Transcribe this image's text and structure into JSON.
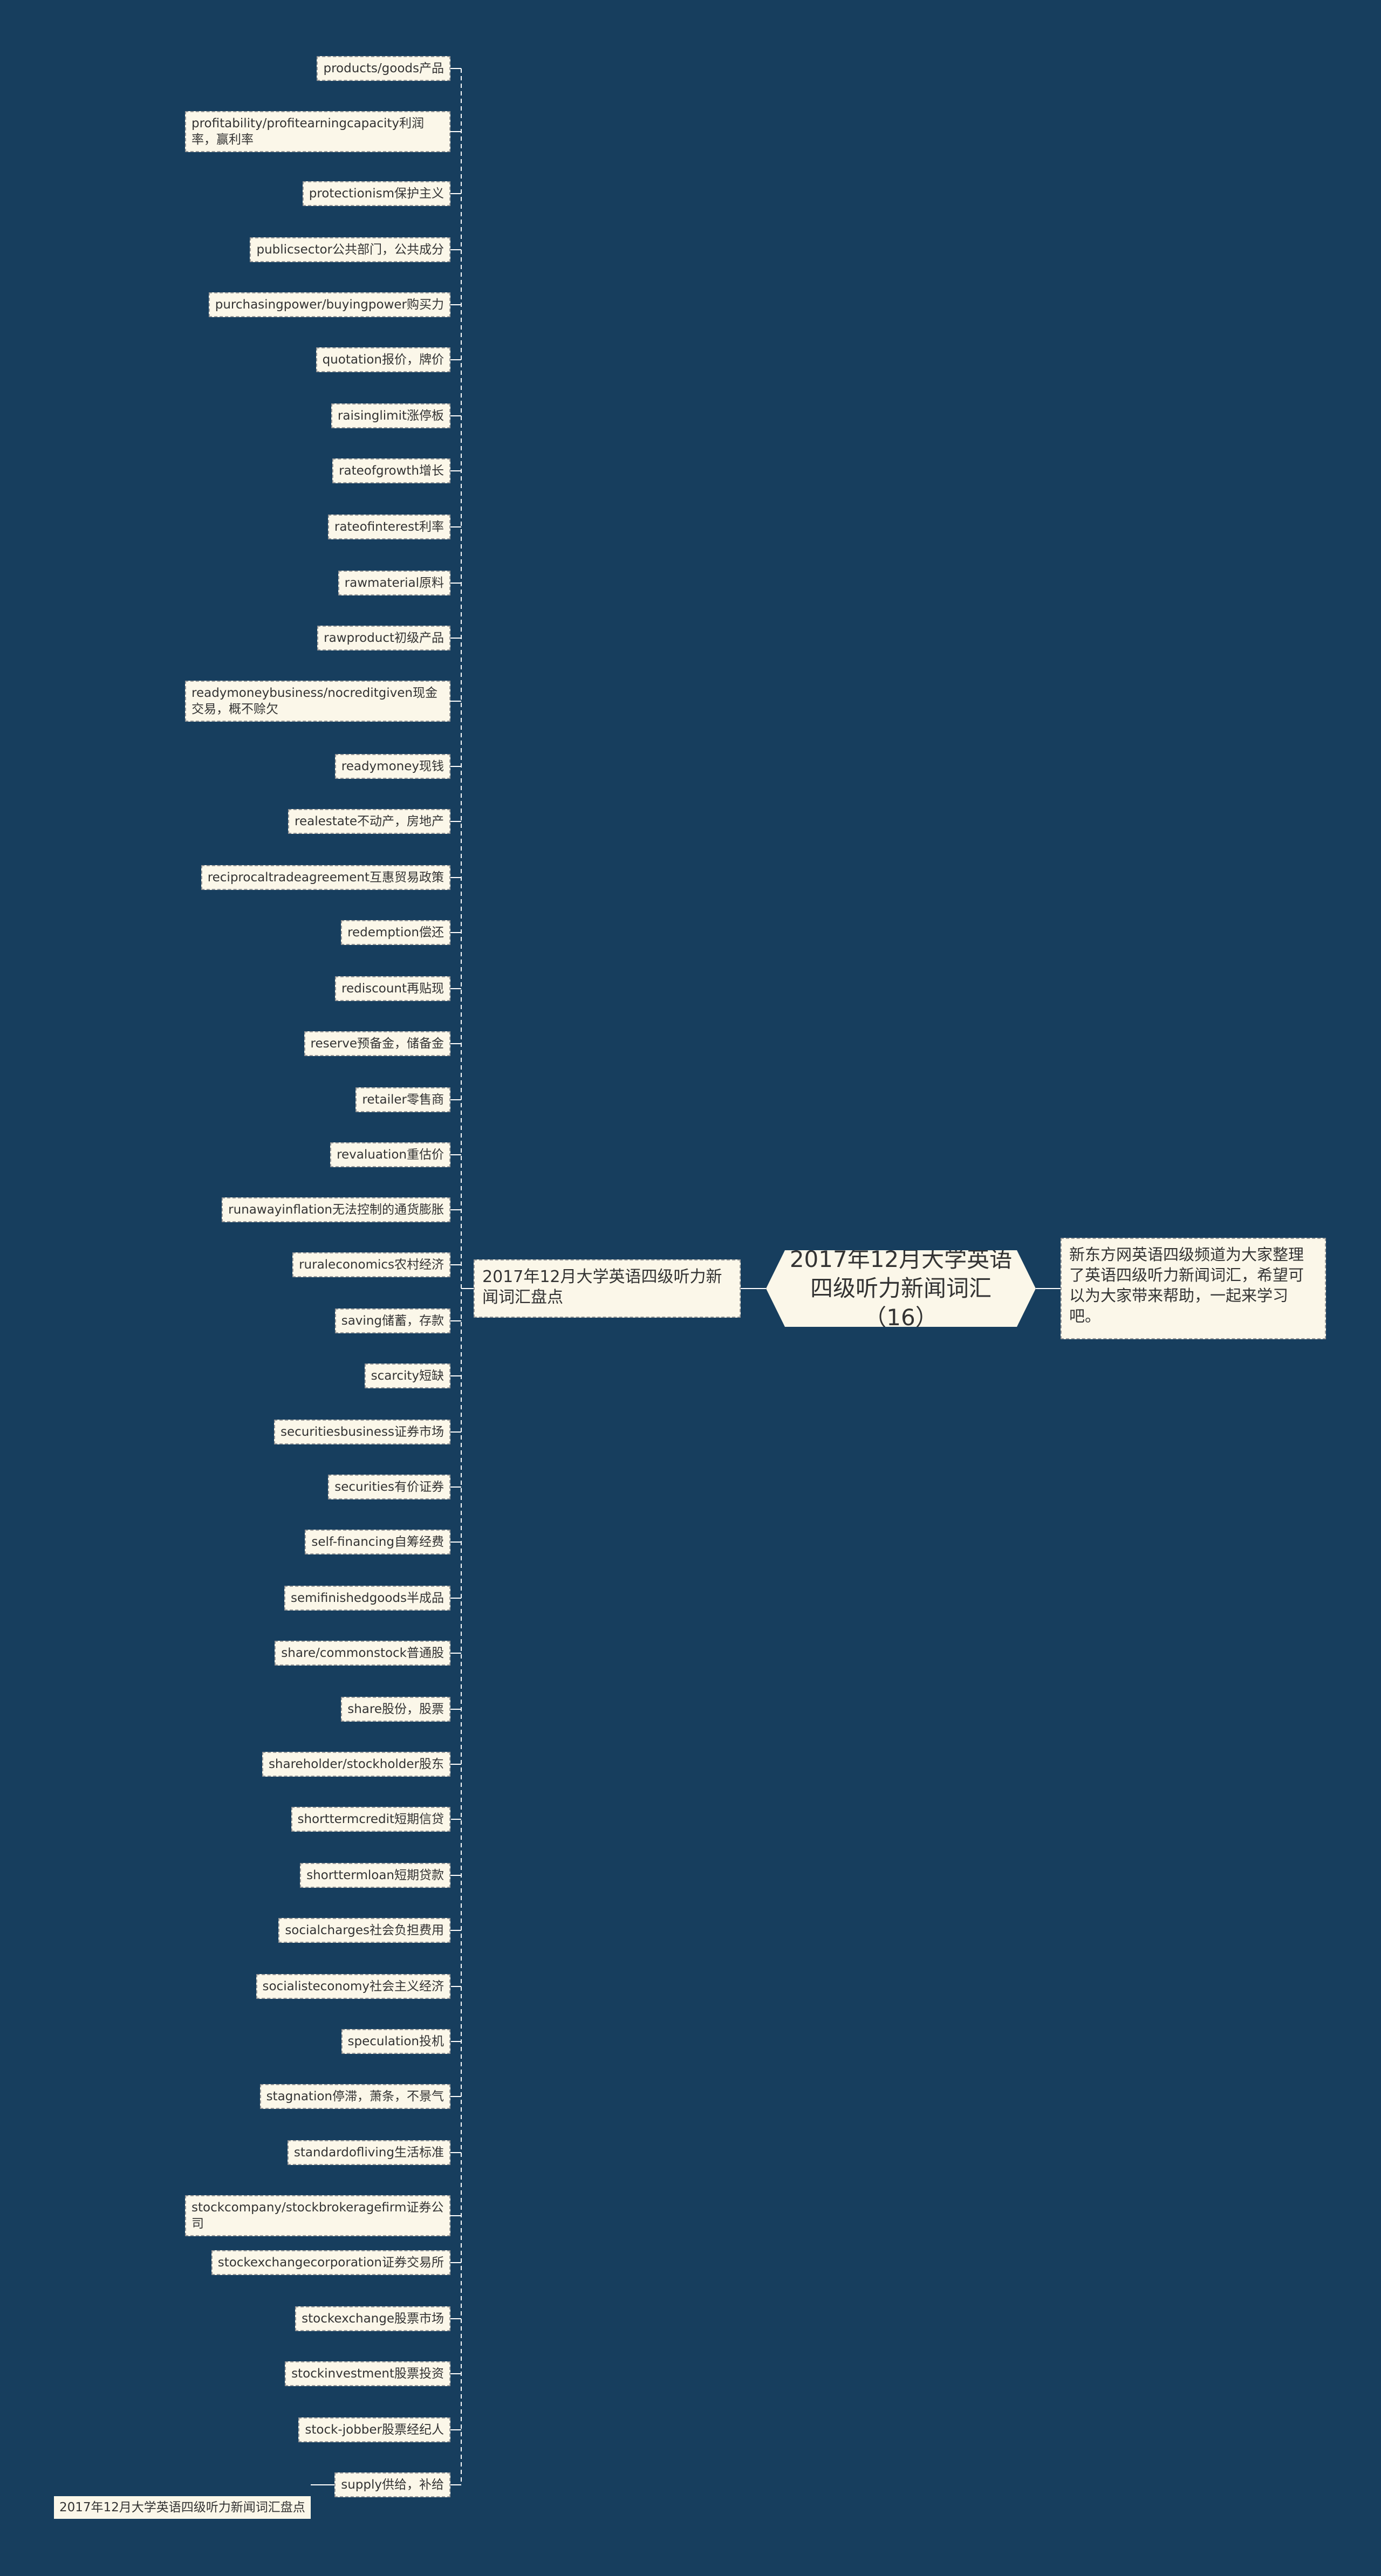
{
  "root": {
    "title": "2017年12月大学英语四级听力新闻词汇（16）"
  },
  "branch": {
    "label": "2017年12月大学英语四级听力新闻词汇盘点"
  },
  "note": {
    "text": "新东方网英语四级频道为大家整理了英语四级听力新闻词汇，希望可以为大家带来帮助，一起来学习吧。"
  },
  "summary": {
    "label": "2017年12月大学英语四级听力新闻词汇盘点"
  },
  "colors": {
    "background": "#173e5e",
    "node_fill": "#fbf7e9",
    "connector": "#ffffff"
  },
  "leaves": [
    "products/goods产品",
    "profitability/profitearningcapacity利润率，赢利率",
    "protectionism保护主义",
    "publicsector公共部门，公共成分",
    "purchasingpower/buyingpower购买力",
    "quotation报价，牌价",
    "raisinglimit涨停板",
    "rateofgrowth增长",
    "rateofinterest利率",
    "rawmaterial原料",
    "rawproduct初级产品",
    "readymoneybusiness/nocreditgiven现金交易，概不赊欠",
    "readymoney现钱",
    "realestate不动产，房地产",
    "reciprocaltradeagreement互惠贸易政策",
    "redemption偿还",
    "rediscount再贴现",
    "reserve预备金，储备金",
    "retailer零售商",
    "revaluation重估价",
    "runawayinflation无法控制的通货膨胀",
    "ruraleconomics农村经济",
    "saving储蓄，存款",
    "scarcity短缺",
    "securitiesbusiness证券市场",
    "securities有价证券",
    "self-financing自筹经费",
    "semifinishedgoods半成品",
    "share/commonstock普通股",
    "share股份，股票",
    "shareholder/stockholder股东",
    "shorttermcredit短期信贷",
    "shorttermloan短期贷款",
    "socialcharges社会负担费用",
    "socialisteconomy社会主义经济",
    "speculation投机",
    "stagnation停滞，萧条，不景气",
    "standardofliving生活标准",
    "stockcompany/stockbrokeragefirm证券公司",
    "stockexchangecorporation证券交易所",
    "stockexchange股票市场",
    "stockinvestment股票投资",
    "stock-jobber股票经纪人",
    "supply供给，补给"
  ]
}
